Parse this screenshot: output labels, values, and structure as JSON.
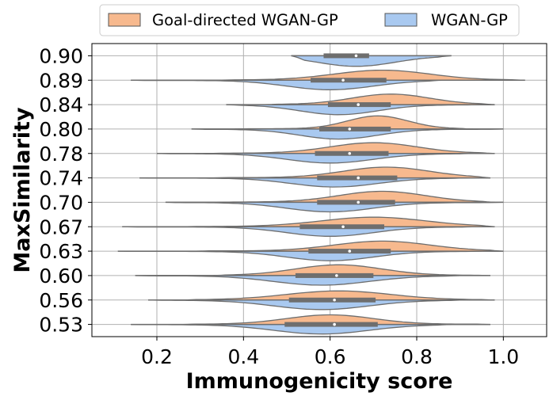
{
  "chart_data": {
    "type": "violin",
    "orientation": "horizontal",
    "split": true,
    "xlabel": "Immunogenicity score",
    "ylabel": "MaxSimilarity",
    "xlim": [
      0.05,
      1.1
    ],
    "xticks": [
      "0.2",
      "0.4",
      "0.6",
      "0.8",
      "1.0"
    ],
    "xtick_values": [
      0.2,
      0.4,
      0.6,
      0.8,
      1.0
    ],
    "grid": true,
    "legend_position": "top-center",
    "categories": [
      "0.90",
      "0.89",
      "0.84",
      "0.80",
      "0.78",
      "0.74",
      "0.70",
      "0.67",
      "0.63",
      "0.60",
      "0.56",
      "0.53"
    ],
    "series": [
      {
        "name": "Goal-directed WGAN-GP",
        "color": "#F7B98E",
        "side": "upper",
        "data": [
          null,
          {
            "min": 0.34,
            "max": 1.05,
            "mode": 0.72,
            "spread": 0.11,
            "peak": 0.42
          },
          {
            "min": 0.45,
            "max": 0.98,
            "mode": 0.74,
            "spread": 0.09,
            "peak": 0.44
          },
          {
            "min": 0.38,
            "max": 0.93,
            "mode": 0.71,
            "spread": 0.07,
            "peak": 0.55
          },
          {
            "min": 0.32,
            "max": 0.98,
            "mode": 0.7,
            "spread": 0.1,
            "peak": 0.45
          },
          {
            "min": 0.33,
            "max": 0.97,
            "mode": 0.73,
            "spread": 0.1,
            "peak": 0.45
          },
          {
            "min": 0.34,
            "max": 0.98,
            "mode": 0.72,
            "spread": 0.1,
            "peak": 0.46
          },
          {
            "min": 0.26,
            "max": 0.98,
            "mode": 0.7,
            "spread": 0.12,
            "peak": 0.4
          },
          {
            "min": 0.29,
            "max": 1.0,
            "mode": 0.72,
            "spread": 0.11,
            "peak": 0.42
          },
          {
            "min": 0.33,
            "max": 0.97,
            "mode": 0.62,
            "spread": 0.1,
            "peak": 0.45
          },
          {
            "min": 0.26,
            "max": 0.98,
            "mode": 0.62,
            "spread": 0.12,
            "peak": 0.38
          },
          {
            "min": 0.26,
            "max": 0.97,
            "mode": 0.6,
            "spread": 0.1,
            "peak": 0.4
          }
        ]
      },
      {
        "name": "WGAN-GP",
        "color": "#A9C9F0",
        "side": "lower",
        "data": [
          {
            "min": 0.51,
            "max": 0.88,
            "mode": 0.66,
            "spread": 0.09,
            "peak": 0.44
          },
          {
            "min": 0.14,
            "max": 0.86,
            "mode": 0.6,
            "spread": 0.1,
            "peak": 0.4
          },
          {
            "min": 0.36,
            "max": 0.98,
            "mode": 0.62,
            "spread": 0.09,
            "peak": 0.42
          },
          {
            "min": 0.28,
            "max": 1.0,
            "mode": 0.62,
            "spread": 0.09,
            "peak": 0.42
          },
          {
            "min": 0.2,
            "max": 0.93,
            "mode": 0.6,
            "spread": 0.1,
            "peak": 0.4
          },
          {
            "min": 0.16,
            "max": 0.92,
            "mode": 0.61,
            "spread": 0.1,
            "peak": 0.38
          },
          {
            "min": 0.22,
            "max": 1.0,
            "mode": 0.6,
            "spread": 0.1,
            "peak": 0.4
          },
          {
            "min": 0.12,
            "max": 0.94,
            "mode": 0.6,
            "spread": 0.1,
            "peak": 0.4
          },
          {
            "min": 0.11,
            "max": 0.95,
            "mode": 0.6,
            "spread": 0.1,
            "peak": 0.4
          },
          {
            "min": 0.15,
            "max": 0.9,
            "mode": 0.58,
            "spread": 0.11,
            "peak": 0.4
          },
          {
            "min": 0.18,
            "max": 0.91,
            "mode": 0.58,
            "spread": 0.11,
            "peak": 0.4
          },
          {
            "min": 0.14,
            "max": 0.88,
            "mode": 0.58,
            "spread": 0.11,
            "peak": 0.4
          }
        ]
      }
    ],
    "boxplots": [
      {
        "q1": 0.585,
        "q3": 0.69,
        "median": 0.66
      },
      {
        "q1": 0.555,
        "q3": 0.73,
        "median": 0.63
      },
      {
        "q1": 0.595,
        "q3": 0.74,
        "median": 0.665
      },
      {
        "q1": 0.575,
        "q3": 0.74,
        "median": 0.645
      },
      {
        "q1": 0.565,
        "q3": 0.735,
        "median": 0.645
      },
      {
        "q1": 0.57,
        "q3": 0.755,
        "median": 0.665
      },
      {
        "q1": 0.57,
        "q3": 0.75,
        "median": 0.665
      },
      {
        "q1": 0.53,
        "q3": 0.725,
        "median": 0.63
      },
      {
        "q1": 0.55,
        "q3": 0.74,
        "median": 0.645
      },
      {
        "q1": 0.52,
        "q3": 0.7,
        "median": 0.615
      },
      {
        "q1": 0.505,
        "q3": 0.705,
        "median": 0.61
      },
      {
        "q1": 0.495,
        "q3": 0.71,
        "median": 0.61
      }
    ]
  }
}
